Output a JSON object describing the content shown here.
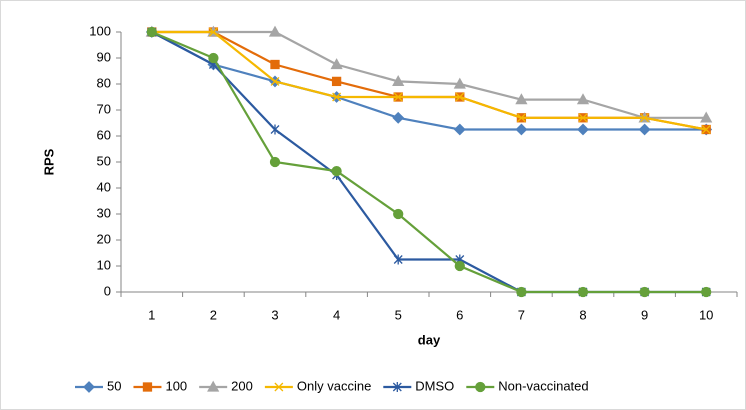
{
  "chart_data": {
    "type": "line",
    "x_label": "day",
    "y_label": "RPS",
    "categories": [
      1,
      2,
      3,
      4,
      5,
      6,
      7,
      8,
      9,
      10
    ],
    "ylim": [
      0,
      100
    ],
    "yticks": [
      0,
      10,
      20,
      30,
      40,
      50,
      60,
      70,
      80,
      90,
      100
    ],
    "grid": false,
    "legend": "bottom",
    "series": [
      {
        "name": "50",
        "color": "#4f81bd",
        "marker": "diamond",
        "values": [
          100,
          87.5,
          81,
          75,
          67,
          62.5,
          62.5,
          62.5,
          62.5,
          62.5
        ]
      },
      {
        "name": "100",
        "color": "#e36c0a",
        "marker": "square",
        "values": [
          100,
          100,
          87.5,
          81,
          75,
          75,
          67,
          67,
          67,
          62.5
        ]
      },
      {
        "name": "200",
        "color": "#a5a5a5",
        "marker": "triangle",
        "values": [
          100,
          100,
          100,
          87.5,
          81,
          80,
          74,
          74,
          67,
          67
        ]
      },
      {
        "name": "Only vaccine",
        "color": "#f5b800",
        "marker": "x",
        "values": [
          100,
          100,
          81,
          75,
          75,
          75,
          67,
          67,
          67,
          62.5
        ]
      },
      {
        "name": "DMSO",
        "color": "#2c5aa0",
        "marker": "star",
        "values": [
          100,
          87.5,
          62.5,
          45,
          12.5,
          12.5,
          0,
          0,
          0,
          0
        ]
      },
      {
        "name": "Non-vaccinated",
        "color": "#65a03a",
        "marker": "circle",
        "values": [
          100,
          90,
          50,
          46.5,
          30,
          10,
          0,
          0,
          0,
          0
        ]
      }
    ]
  }
}
